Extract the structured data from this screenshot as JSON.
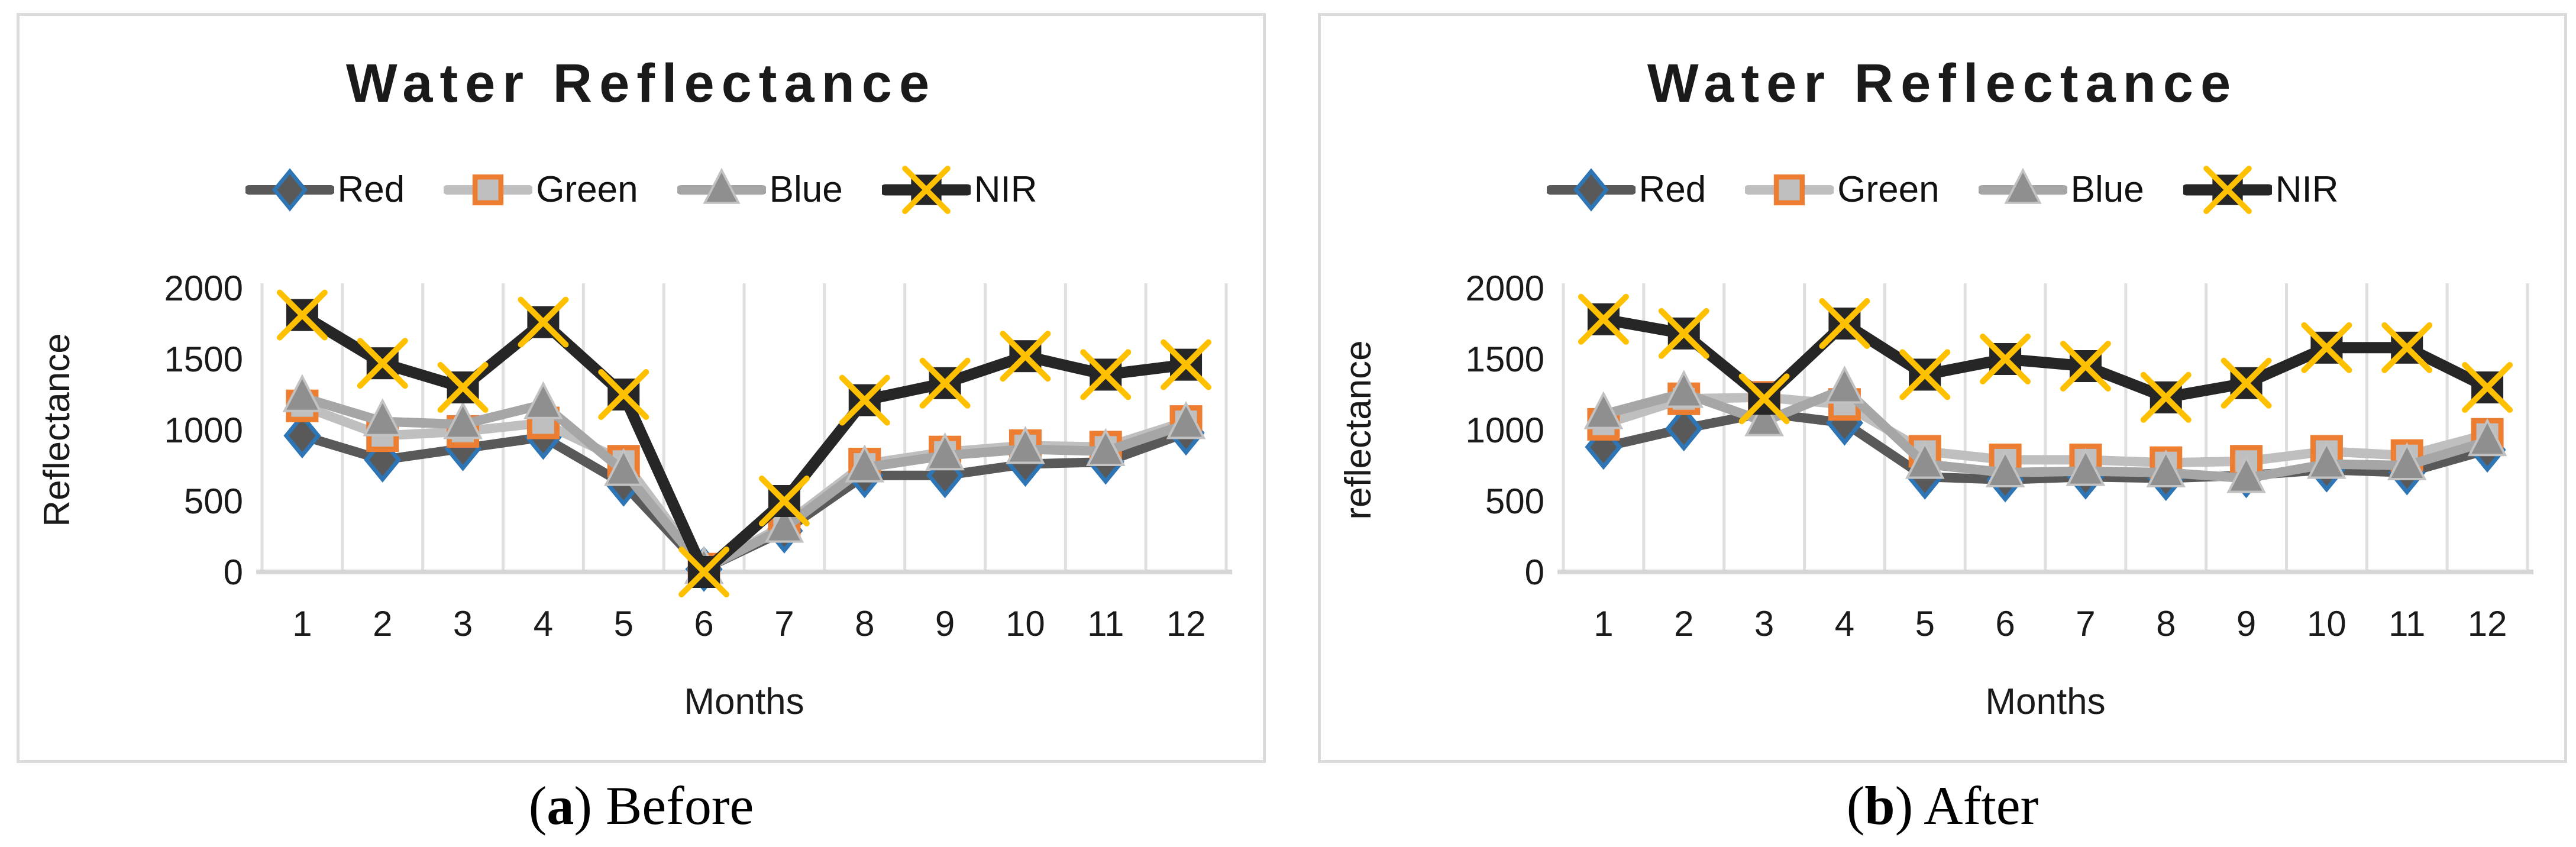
{
  "figure": {
    "background": "#FFFFFF",
    "panel_border_color": "#DBDBDB",
    "gridline_color": "#DFDFDF",
    "axisline_color": "#D6D6D6",
    "text_color": "#1a1a1a",
    "panels": [
      {
        "id": "before",
        "caption_open": "(",
        "caption_label": "a",
        "caption_close": ")",
        "caption_text": " Before"
      },
      {
        "id": "after",
        "caption_open": "(",
        "caption_label": "b",
        "caption_close": ")",
        "caption_text": " After"
      }
    ]
  },
  "chart_data": [
    {
      "type": "line",
      "title": "Water Reflectance",
      "xlabel": "Months",
      "ylabel": "Reflectance",
      "categories": [
        1,
        2,
        3,
        4,
        5,
        6,
        7,
        8,
        9,
        10,
        11,
        12
      ],
      "ylim": [
        0,
        2000
      ],
      "yticks": [
        0,
        500,
        1000,
        1500,
        2000
      ],
      "grid": "vertical-only",
      "legend_position": "top",
      "series": [
        {
          "name": "Red",
          "marker": "diamond",
          "line_color": "#595959",
          "marker_fill": "#595959",
          "marker_stroke": "#2E75B6",
          "values": [
            960,
            790,
            870,
            950,
            620,
            20,
            290,
            680,
            680,
            760,
            775,
            980
          ]
        },
        {
          "name": "Green",
          "marker": "square",
          "line_color": "#BFBFBF",
          "marker_fill": "#BFBFBF",
          "marker_stroke": "#ED7D31",
          "values": [
            1170,
            960,
            990,
            1050,
            780,
            20,
            330,
            760,
            845,
            890,
            880,
            1060
          ]
        },
        {
          "name": "Blue",
          "marker": "triangle",
          "line_color": "#A6A6A6",
          "marker_fill": "#8F8F8F",
          "marker_stroke": "#C2C2C2",
          "values": [
            1230,
            1060,
            1040,
            1180,
            710,
            20,
            310,
            735,
            820,
            865,
            850,
            1040
          ]
        },
        {
          "name": "NIR",
          "marker": "x-square",
          "line_color": "#262626",
          "marker_fill": "#262626",
          "marker_stroke": "#FFC000",
          "values": [
            1810,
            1470,
            1300,
            1760,
            1250,
            0,
            500,
            1210,
            1330,
            1520,
            1390,
            1460
          ]
        }
      ]
    },
    {
      "type": "line",
      "title": "Water Reflectance",
      "xlabel": "Months",
      "ylabel": "reflectance",
      "categories": [
        1,
        2,
        3,
        4,
        5,
        6,
        7,
        8,
        9,
        10,
        11,
        12
      ],
      "ylim": [
        0,
        2000
      ],
      "yticks": [
        0,
        500,
        1000,
        1500,
        2000
      ],
      "grid": "vertical-only",
      "legend_position": "top",
      "series": [
        {
          "name": "Red",
          "marker": "diamond",
          "line_color": "#595959",
          "marker_fill": "#595959",
          "marker_stroke": "#2E75B6",
          "values": [
            880,
            1010,
            1120,
            1050,
            670,
            650,
            670,
            660,
            680,
            720,
            700,
            860
          ]
        },
        {
          "name": "Green",
          "marker": "square",
          "line_color": "#BFBFBF",
          "marker_fill": "#BFBFBF",
          "marker_stroke": "#ED7D31",
          "values": [
            1040,
            1220,
            1230,
            1180,
            850,
            790,
            790,
            770,
            780,
            850,
            820,
            970
          ]
        },
        {
          "name": "Blue",
          "marker": "triangle",
          "line_color": "#A6A6A6",
          "marker_fill": "#8F8F8F",
          "marker_stroke": "#C2C2C2",
          "values": [
            1110,
            1260,
            1060,
            1290,
            760,
            700,
            710,
            700,
            660,
            760,
            750,
            920
          ]
        },
        {
          "name": "NIR",
          "marker": "x-square",
          "line_color": "#262626",
          "marker_fill": "#262626",
          "marker_stroke": "#FFC000",
          "values": [
            1780,
            1680,
            1220,
            1750,
            1390,
            1500,
            1450,
            1230,
            1330,
            1580,
            1580,
            1300
          ]
        }
      ]
    }
  ]
}
